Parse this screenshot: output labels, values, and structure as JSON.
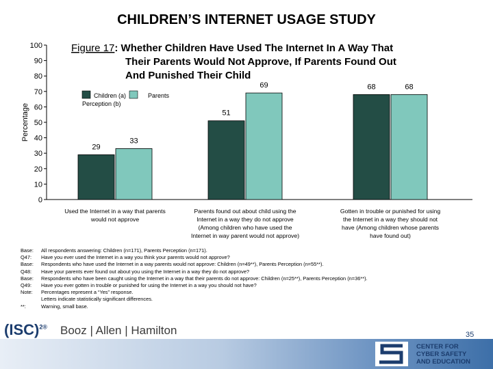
{
  "page_title": "CHILDREN’S INTERNET USAGE STUDY",
  "page_number": "35",
  "chart_data": {
    "type": "bar",
    "title": "Figure 17: Whether Children Have Used The Internet In A Way That Their Parents Would Not Approve, If Parents Found Out And Punished Their Child",
    "title_prefix": "Figure 17",
    "title_lines": [
      "Whether Children Have Used The Internet In A Way That",
      "Their Parents Would Not Approve, If Parents Found Out",
      "And Punished Their Child"
    ],
    "ylabel": "Percentage",
    "ylim": [
      0,
      100
    ],
    "yticks": [
      "0",
      "10",
      "20",
      "30",
      "40",
      "50",
      "60",
      "70",
      "80",
      "90",
      "100"
    ],
    "categories": [
      [
        "Used the Internet in a way that parents",
        "would not approve"
      ],
      [
        "Parents found out about child using the",
        "Internet in a way they do not approve",
        "(Among children who have used the",
        "Internet in way parent would not approve)"
      ],
      [
        "Gotten in trouble or punished for using",
        "the Internet in a way they should not",
        "have (Among children whose parents",
        "have found out)"
      ]
    ],
    "series": [
      {
        "name": "Children (a)",
        "color": "#234d45",
        "values": [
          29,
          51,
          68
        ]
      },
      {
        "name": "Parents Perception (b)",
        "color": "#80c8bc",
        "values": [
          33,
          69,
          68
        ]
      }
    ],
    "legend_position": "upper-left",
    "grid": false,
    "legend_labels": {
      "children": "Children (a)",
      "parents": "Parents",
      "perception": "Perception (b)"
    }
  },
  "notes": [
    {
      "label": "Base:",
      "text": "All respondents answering: Children (n=171), Parents Perception (n=171)."
    },
    {
      "label": "Q47:",
      "text": "Have you ever used the Internet in a way you think your parents would not approve?"
    },
    {
      "label": "Base:",
      "text": "Respondents who have used the Internet in a way parents would not approve: Children (n=49**), Parents Perception (n=55**)."
    },
    {
      "label": "Q48:",
      "text": "Have your parents ever found out about you using the Internet in a way they do not approve?"
    },
    {
      "label": "Base:",
      "text": "Respondents who have been caught using the Internet in a way that their parents do not approve: Children (n=25**), Parents Perception (n=36**)."
    },
    {
      "label": "Q49:",
      "text": "Have you ever gotten in trouble or punished for using the Internet in a way you should not have?"
    },
    {
      "label": "Note:",
      "text": "Percentages represent a “Yes” response."
    },
    {
      "label": "",
      "text": "Letters indicate statistically significant differences."
    },
    {
      "label": "**:",
      "text": "Warning, small base."
    }
  ],
  "logos": {
    "isc": "(ISC)",
    "isc_sup": "2®",
    "bah": "Booz | Allen | Hamilton",
    "cc_lines": [
      "CENTER FOR",
      "CYBER SAFETY",
      "AND EDUCATION"
    ]
  },
  "colors": {
    "children_bar": "#234d45",
    "parents_bar": "#80c8bc",
    "brand_blue": "#1c3d6e"
  }
}
